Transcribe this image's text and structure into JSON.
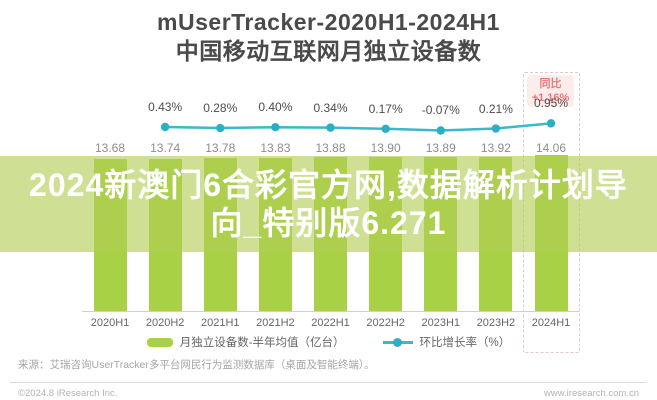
{
  "title": {
    "line1": "mUserTracker-2020H1-2024H1",
    "line2": "中国移动互联网月独立设备数"
  },
  "overlay_banner": {
    "line1": "2024新澳门6合彩官方网,数据解析计划导",
    "line2": "向_特别版6.271"
  },
  "highlight_badge": {
    "label": "同比",
    "value": "+1.16%"
  },
  "chart_data": {
    "type": "bar",
    "title": "mUserTracker-2020H1-2024H1 中国移动互联网月独立设备数",
    "categories": [
      "2020H1",
      "2020H2",
      "2021H1",
      "2021H2",
      "2022H1",
      "2022H2",
      "2023H1",
      "2023H2",
      "2024H1"
    ],
    "series": [
      {
        "name": "月独立设备数-半年均值（亿台）",
        "type": "bar",
        "values": [
          13.68,
          13.74,
          13.78,
          13.83,
          13.88,
          13.9,
          13.89,
          13.92,
          14.06
        ]
      },
      {
        "name": "环比增长率（%）",
        "type": "line",
        "values": [
          null,
          0.43,
          0.28,
          0.4,
          0.34,
          0.17,
          -0.07,
          0.21,
          0.95
        ]
      }
    ],
    "yoy_highlight": {
      "category": "2024H1",
      "label": "同比",
      "value": "+1.16%"
    },
    "bar_axis_range": [
      0,
      14.06
    ],
    "grid": false,
    "legend_position": "bottom"
  },
  "legend": {
    "items": [
      {
        "label": "月独立设备数-半年均值（亿台）",
        "swatch": "bar-green"
      },
      {
        "label": "环比增长率（%）",
        "swatch": "line-teal"
      }
    ]
  },
  "source_note": "来源：艾瑞咨询UserTracker多平台网民行为监测数据库（桌面及智能终端）。",
  "footer": {
    "left": "©2024.8 iResearch Inc.",
    "right": "www.iresearch.com.cn"
  },
  "colors": {
    "bar": "#a9d145",
    "line": "#3ab9cb",
    "dot": "#2aafc6",
    "badge_text": "#e87878",
    "badge_bg": "#fdecec",
    "banner_bg": "rgba(177,205,84,0.62)",
    "banner_text": "#ffffff"
  }
}
